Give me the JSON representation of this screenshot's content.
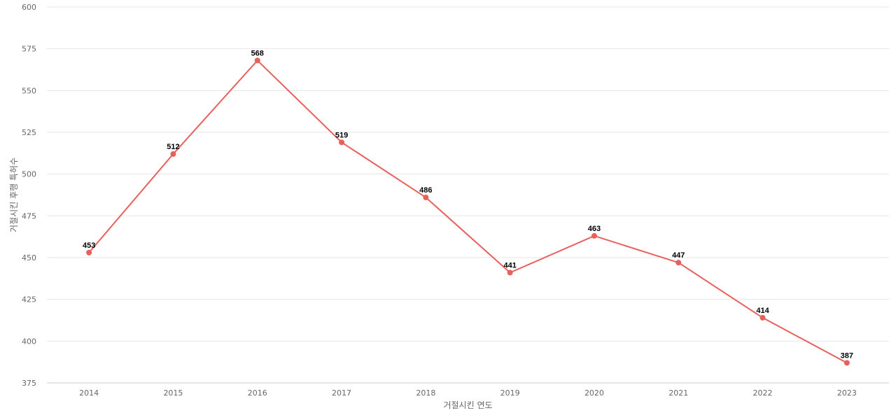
{
  "chart_data": {
    "type": "line",
    "title": "",
    "xlabel": "거절시킨 연도",
    "ylabel": "거절시킨 후행 특허수",
    "categories": [
      "2014",
      "2015",
      "2016",
      "2017",
      "2018",
      "2019",
      "2020",
      "2021",
      "2022",
      "2023"
    ],
    "series": [
      {
        "values": [
          453,
          512,
          568,
          519,
          486,
          441,
          463,
          447,
          414,
          387
        ],
        "color": "#e8605c"
      }
    ],
    "ylim": [
      375,
      600
    ],
    "yticks": [
      375,
      400,
      425,
      450,
      475,
      500,
      525,
      550,
      575,
      600
    ],
    "grid": true,
    "data_labels": true,
    "legend": "none"
  }
}
